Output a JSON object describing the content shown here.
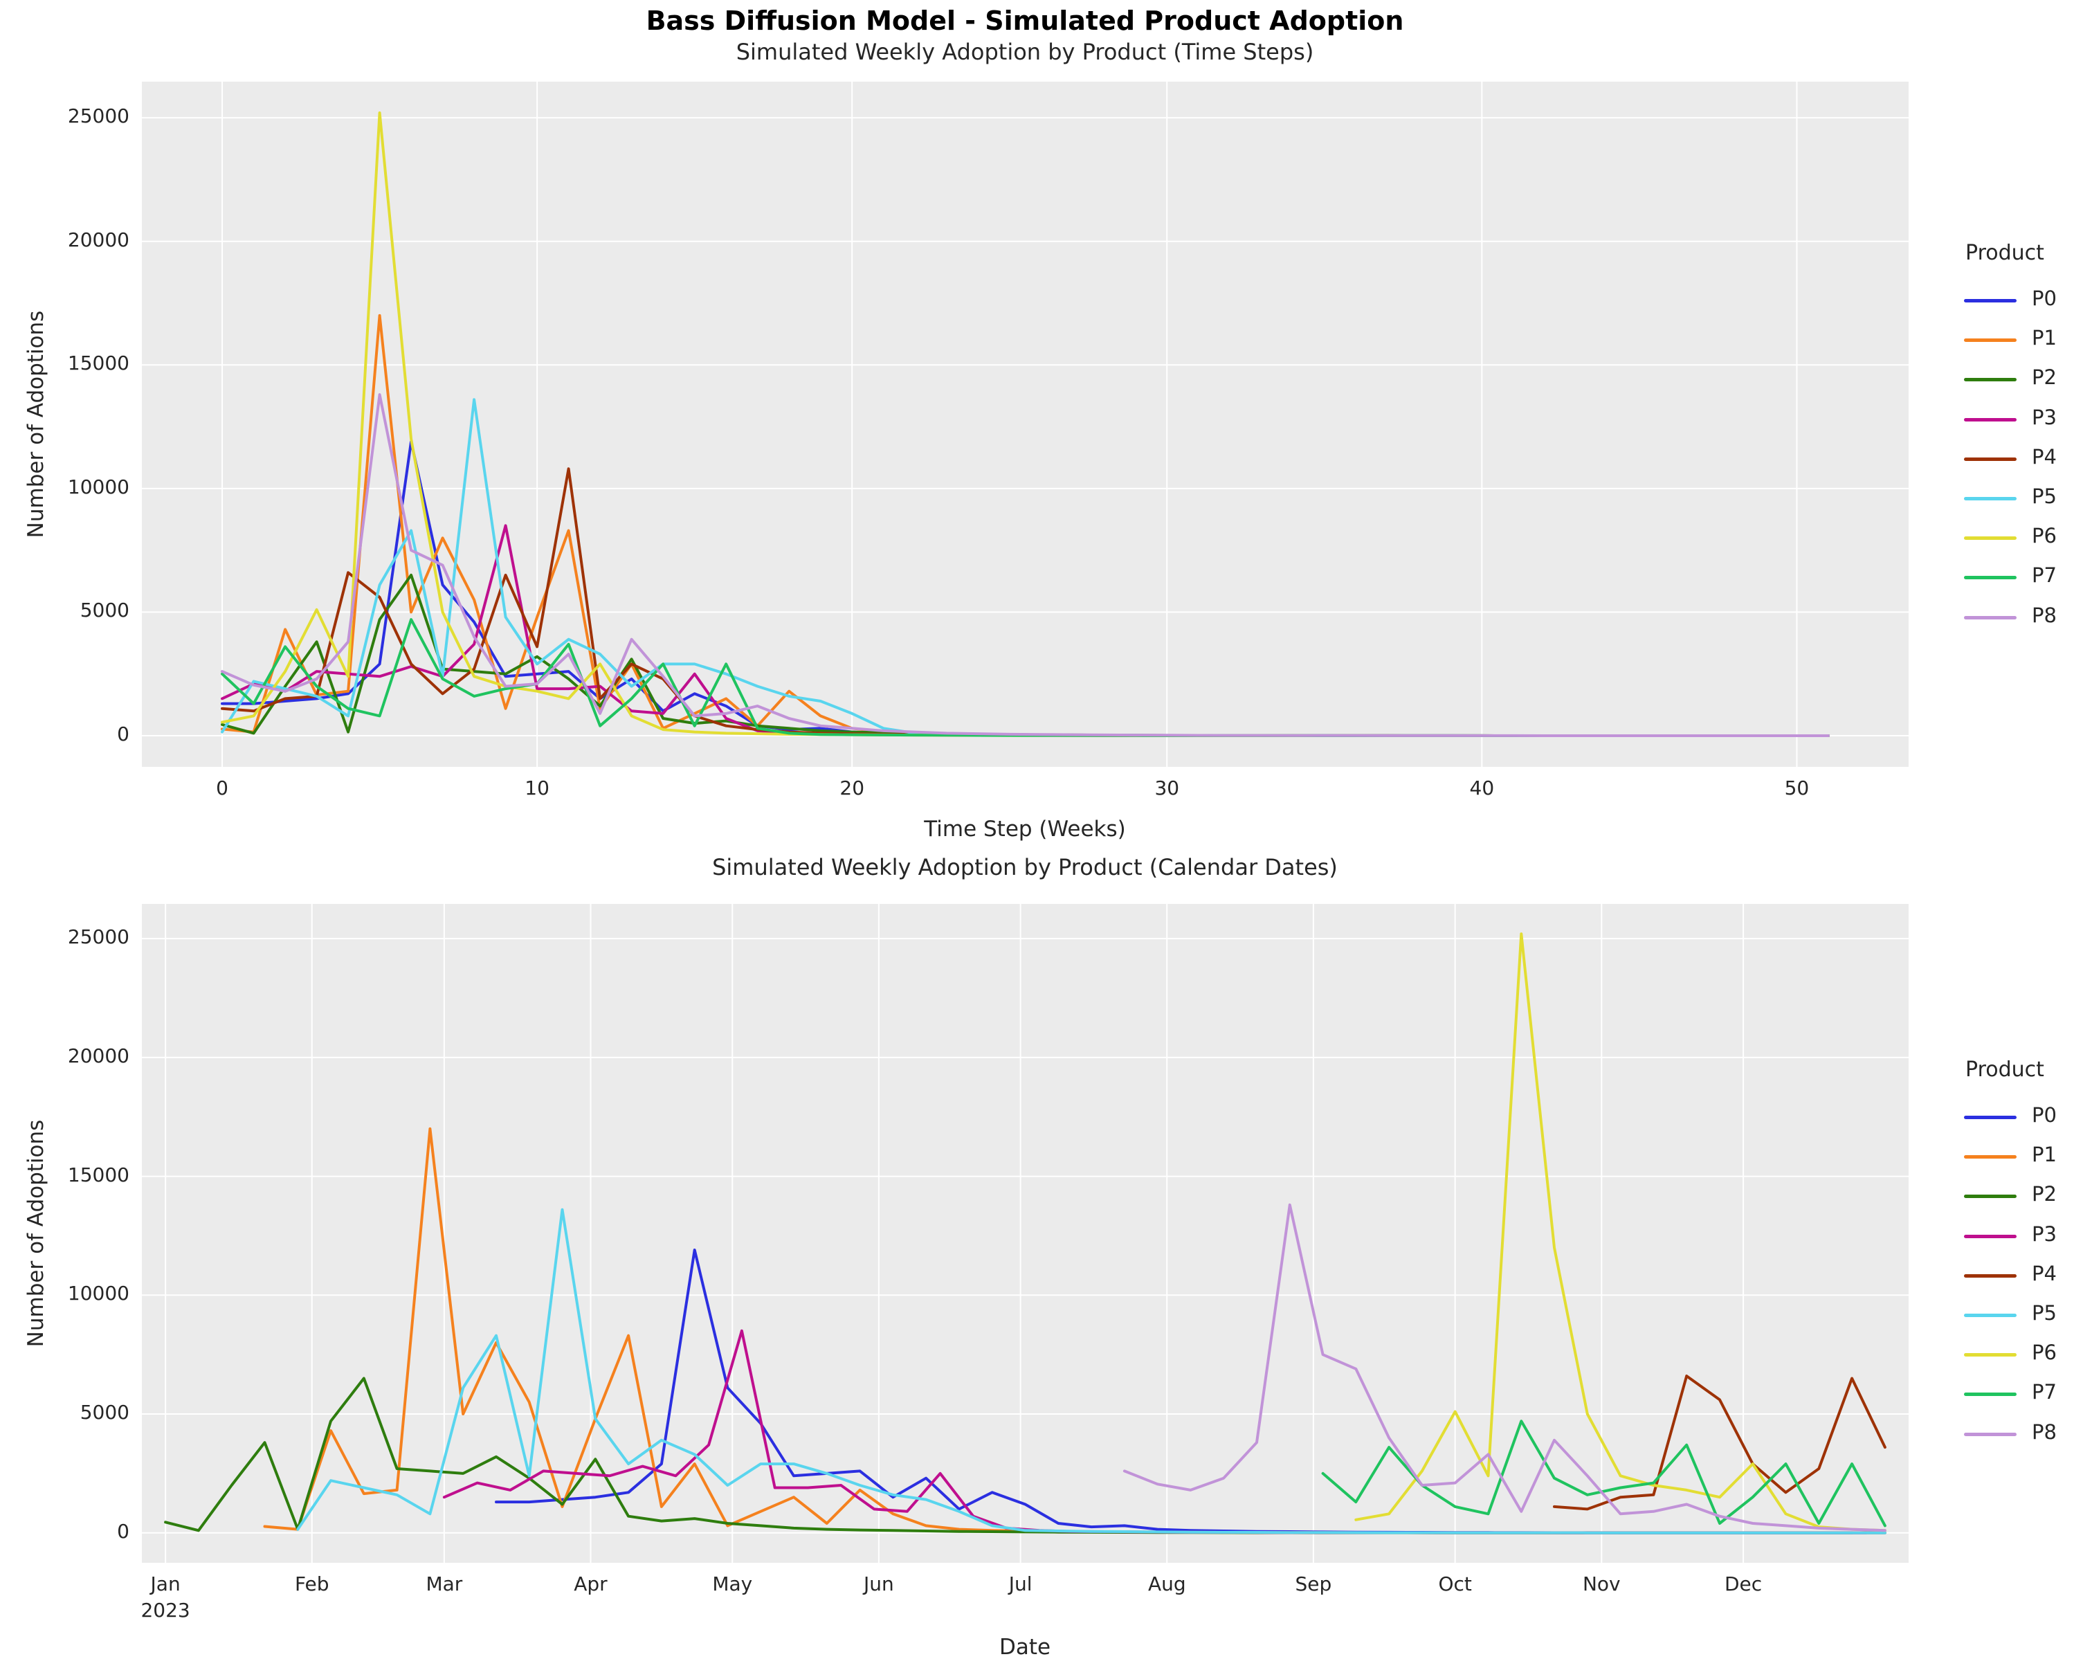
{
  "figure": {
    "title": "Bass Diffusion Model - Simulated Product Adoption",
    "background_color": "#ffffff"
  },
  "chart_data": {
    "type": "line",
    "axes_background_color": "#ebebeb",
    "grid_color": "#ffffff",
    "text_color": "#262626",
    "legend": {
      "title": "Product",
      "entries": [
        "P0",
        "P1",
        "P2",
        "P3",
        "P4",
        "P5",
        "P6",
        "P7",
        "P8"
      ],
      "position": "right"
    },
    "products": [
      {
        "name": "P0",
        "color": "#2b2fe0",
        "launch_date": "2023-03-12",
        "weekly_adoptions": [
          1300,
          1300,
          1400,
          1500,
          1700,
          2900,
          11900,
          6100,
          4600,
          2400,
          2500,
          2600,
          1500,
          2300,
          1000,
          1700,
          1200,
          400,
          250,
          300,
          150,
          100,
          80,
          60,
          50,
          40,
          30,
          25,
          20,
          15,
          12,
          10,
          8,
          6,
          5,
          4,
          3,
          3,
          2,
          2,
          1,
          1,
          1,
          1,
          0,
          0,
          0,
          0,
          0,
          0,
          0,
          0
        ]
      },
      {
        "name": "P1",
        "color": "#f5811e",
        "launch_date": "2023-01-22",
        "weekly_adoptions": [
          270,
          150,
          4300,
          1650,
          1800,
          17000,
          5000,
          8000,
          5500,
          1100,
          4800,
          8300,
          1100,
          2900,
          300,
          900,
          1500,
          400,
          1800,
          800,
          300,
          150,
          100,
          80,
          60,
          50,
          40,
          30,
          25,
          20,
          15,
          12,
          10,
          8,
          6,
          5,
          4,
          3,
          3,
          2,
          2,
          1,
          1,
          1,
          0,
          0,
          0,
          0,
          0,
          0,
          0,
          0
        ]
      },
      {
        "name": "P2",
        "color": "#2e7d0e",
        "launch_date": "2023-01-01",
        "weekly_adoptions": [
          450,
          100,
          2000,
          3800,
          150,
          4700,
          6500,
          2700,
          2600,
          2500,
          3200,
          2300,
          1200,
          3100,
          700,
          500,
          600,
          400,
          300,
          200,
          150,
          120,
          100,
          80,
          60,
          50,
          40,
          30,
          25,
          20,
          15,
          12,
          10,
          8,
          6,
          5,
          4,
          3,
          3,
          2,
          2,
          1,
          1,
          1,
          0,
          0,
          0,
          0,
          0,
          0,
          0,
          0
        ]
      },
      {
        "name": "P3",
        "color": "#bf0f8e",
        "launch_date": "2023-03-01",
        "weekly_adoptions": [
          1500,
          2100,
          1800,
          2600,
          2500,
          2400,
          2800,
          2400,
          3700,
          8500,
          1900,
          1900,
          2000,
          1000,
          900,
          2500,
          700,
          200,
          100,
          60,
          50,
          40,
          30,
          25,
          20,
          15,
          12,
          10,
          8,
          6,
          5,
          4,
          3,
          3,
          2,
          2,
          1,
          1,
          1,
          0,
          0,
          0,
          0,
          0,
          0,
          0,
          0,
          0,
          0,
          0,
          0,
          0
        ]
      },
      {
        "name": "P4",
        "color": "#9e3206",
        "launch_date": "2023-10-22",
        "weekly_adoptions": [
          1100,
          1000,
          1500,
          1600,
          6600,
          5600,
          2900,
          1700,
          2700,
          6500,
          3600,
          10800,
          1500,
          2900,
          2300,
          800,
          400,
          250,
          150,
          100,
          80,
          60,
          50,
          40,
          30,
          25,
          20,
          15,
          12,
          10,
          8,
          6,
          5,
          4,
          3,
          3,
          2,
          2,
          1,
          1,
          1,
          0,
          0,
          0,
          0,
          0,
          0,
          0,
          0,
          0,
          0,
          0
        ]
      },
      {
        "name": "P5",
        "color": "#59d5ee",
        "launch_date": "2023-01-29",
        "weekly_adoptions": [
          150,
          2200,
          1900,
          1600,
          800,
          6100,
          8300,
          2400,
          13600,
          4800,
          2900,
          3900,
          3300,
          2000,
          2900,
          2900,
          2500,
          2000,
          1600,
          1400,
          900,
          300,
          100,
          80,
          60,
          50,
          40,
          30,
          25,
          20,
          15,
          12,
          10,
          8,
          6,
          5,
          4,
          3,
          3,
          2,
          2,
          1,
          1,
          1,
          0,
          0,
          0,
          0,
          0,
          0,
          0,
          0
        ]
      },
      {
        "name": "P6",
        "color": "#e2dd33",
        "launch_date": "2023-09-10",
        "weekly_adoptions": [
          550,
          800,
          2600,
          5100,
          2400,
          25200,
          12000,
          5000,
          2400,
          2000,
          1800,
          1500,
          2900,
          800,
          250,
          150,
          100,
          80,
          60,
          50,
          40,
          30,
          25,
          20,
          15,
          12,
          10,
          8,
          6,
          5,
          4,
          3,
          3,
          2,
          2,
          1,
          1,
          1,
          0,
          0,
          0,
          0,
          0,
          0,
          0,
          0,
          0,
          0,
          0,
          0,
          0,
          0
        ]
      },
      {
        "name": "P7",
        "color": "#1fc35f",
        "launch_date": "2023-09-03",
        "weekly_adoptions": [
          2500,
          1300,
          3600,
          2000,
          1100,
          800,
          4700,
          2300,
          1600,
          1900,
          2100,
          3700,
          400,
          1500,
          2900,
          400,
          2900,
          300,
          100,
          50,
          40,
          30,
          25,
          20,
          15,
          12,
          10,
          8,
          6,
          5,
          4,
          3,
          3,
          2,
          2,
          1,
          1,
          1,
          0,
          0,
          0,
          0,
          0,
          0,
          0,
          0,
          0,
          0,
          0,
          0,
          0,
          0
        ]
      },
      {
        "name": "P8",
        "color": "#c193d8",
        "launch_date": "2023-07-23",
        "weekly_adoptions": [
          2600,
          2050,
          1800,
          2300,
          3800,
          13800,
          7500,
          6900,
          4000,
          2000,
          2100,
          3300,
          900,
          3900,
          2400,
          800,
          900,
          1200,
          700,
          400,
          300,
          200,
          150,
          100,
          80,
          60,
          50,
          40,
          30,
          25,
          20,
          15,
          12,
          10,
          8,
          6,
          5,
          4,
          3,
          3,
          2,
          2,
          1,
          1,
          1,
          0,
          0,
          0,
          0,
          0,
          0,
          0
        ]
      }
    ],
    "charts": [
      {
        "id": "timesteps",
        "title": "Simulated Weekly Adoption by Product (Time Steps)",
        "xlabel": "Time Step (Weeks)",
        "ylabel": "Number of Adoptions",
        "x_mode": "week_index",
        "x_ticks": [
          0,
          10,
          20,
          30,
          40,
          50
        ],
        "y_ticks": [
          0,
          5000,
          10000,
          15000,
          20000,
          25000
        ],
        "xlim": [
          -2.55,
          53.55
        ],
        "ylim": [
          -1260,
          26460
        ],
        "grid": true,
        "legend_title": "Product"
      },
      {
        "id": "calendar",
        "title": "Simulated Weekly Adoption by Product (Calendar Dates)",
        "xlabel": "Date",
        "ylabel": "Number of Adoptions",
        "x_mode": "calendar_2023",
        "x_tick_labels": [
          "Jan",
          "Feb",
          "Mar",
          "Apr",
          "May",
          "Jun",
          "Jul",
          "Aug",
          "Sep",
          "Oct",
          "Nov",
          "Dec"
        ],
        "x_first_tick_year": "2023",
        "y_ticks": [
          0,
          5000,
          10000,
          15000,
          20000,
          25000
        ],
        "ylim": [
          -1260,
          26460
        ],
        "grid": true,
        "legend_title": "Product"
      }
    ]
  }
}
